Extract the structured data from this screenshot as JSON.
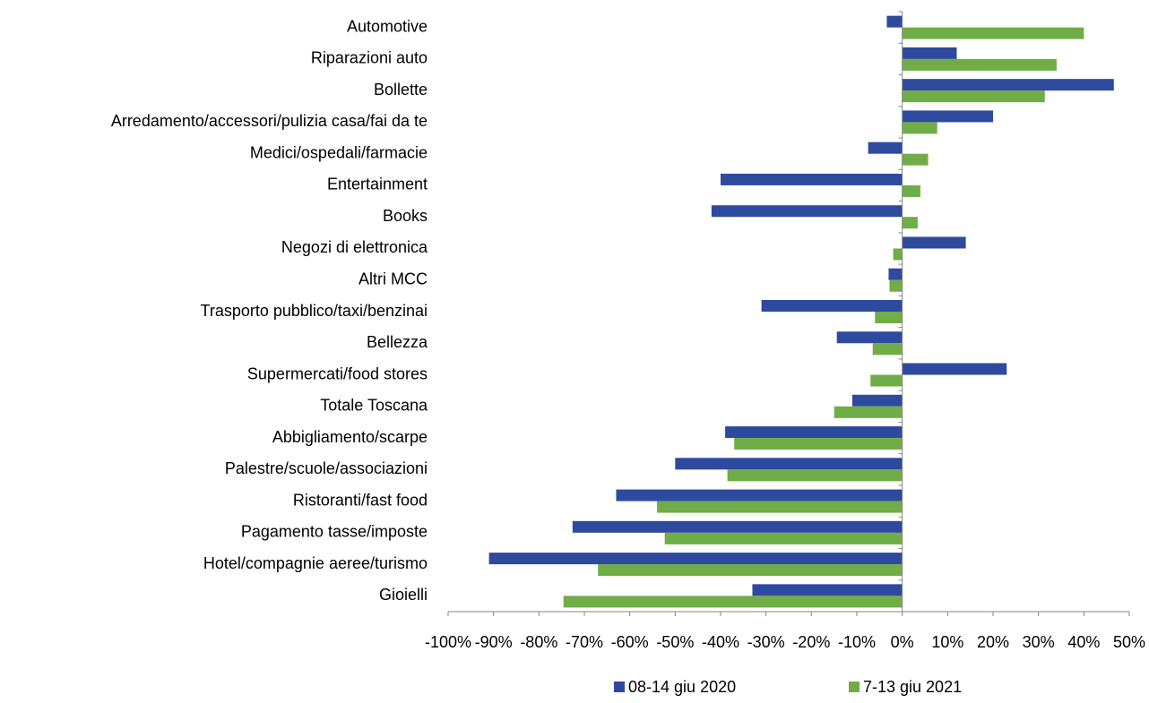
{
  "chart_data": {
    "type": "hbar",
    "categories": [
      "Automotive",
      "Riparazioni auto",
      "Bollette",
      "Arredamento/accessori/pulizia casa/fai da te",
      "Medici/ospedali/farmacie",
      "Entertainment",
      "Books",
      "Negozi di elettronica",
      "Altri MCC",
      "Trasporto pubblico/taxi/benzinai",
      "Bellezza",
      "Supermercati/food stores",
      "Totale Toscana",
      "Abbigliamento/scarpe",
      "Palestre/scuole/associazioni",
      "Ristoranti/fast food",
      "Pagamento tasse/imposte",
      "Hotel/compagnie aeree/turismo",
      "Gioielli"
    ],
    "series": [
      {
        "name": "08-14 giu 2020",
        "color": "#2e4a9e",
        "values": [
          -3.4,
          12,
          46.6,
          20,
          -7.5,
          -40,
          -42,
          14,
          -3,
          -31,
          -14.4,
          23,
          -11,
          -39,
          -50,
          -63,
          -72.6,
          -91,
          -33
        ]
      },
      {
        "name": "7-13 giu 2021",
        "color": "#70ad47",
        "values": [
          40,
          34,
          31.4,
          7.7,
          5.7,
          4,
          3.4,
          -2,
          -2.8,
          -6,
          -6.5,
          -7,
          -15,
          -37,
          -38.5,
          -54,
          -52.3,
          -67,
          -74.6
        ]
      }
    ],
    "xlim": [
      -100,
      50
    ],
    "xticks": [
      {
        "value": -100,
        "label": "-100%"
      },
      {
        "value": -90,
        "label": "-90%"
      },
      {
        "value": -80,
        "label": "-80%"
      },
      {
        "value": -70,
        "label": "-70%"
      },
      {
        "value": -60,
        "label": "-60%"
      },
      {
        "value": -50,
        "label": "-50%"
      },
      {
        "value": -40,
        "label": "-40%"
      },
      {
        "value": -30,
        "label": "-30%"
      },
      {
        "value": -20,
        "label": "-20%"
      },
      {
        "value": -10,
        "label": "-10%"
      },
      {
        "value": 0,
        "label": "0%"
      },
      {
        "value": 10,
        "label": "10%"
      },
      {
        "value": 20,
        "label": "20%"
      },
      {
        "value": 30,
        "label": "30%"
      },
      {
        "value": 40,
        "label": "40%"
      },
      {
        "value": 50,
        "label": "50%"
      }
    ],
    "legend": "bottom"
  }
}
